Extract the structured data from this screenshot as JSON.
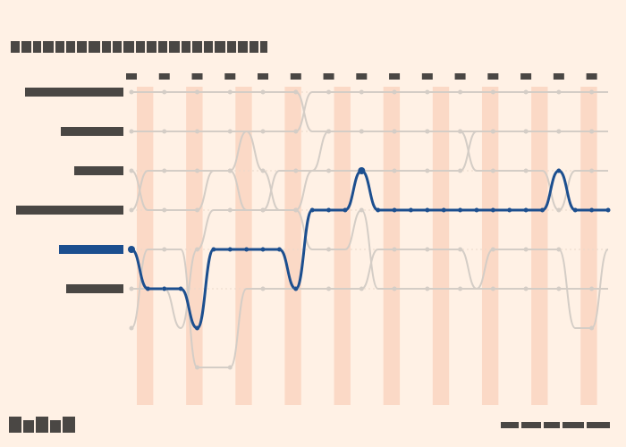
{
  "chart_data": {
    "type": "line",
    "title": "",
    "x": [
      1,
      2,
      3,
      4,
      5,
      6,
      7,
      8,
      9,
      10,
      11,
      12,
      13,
      14,
      15,
      16,
      17,
      18,
      19,
      20,
      21,
      22,
      23,
      24,
      25,
      26,
      27,
      28,
      29,
      30
    ],
    "y_positions_count": 7,
    "y_range": [
      1,
      7
    ],
    "highlight_bands": [
      [
        1,
        2
      ],
      [
        4,
        5
      ],
      [
        7,
        8
      ],
      [
        10,
        11
      ],
      [
        13,
        14
      ],
      [
        16,
        17
      ],
      [
        19,
        20
      ],
      [
        22,
        23
      ],
      [
        25,
        26
      ],
      [
        28,
        29
      ]
    ],
    "highlighted_series_index": 0,
    "series": [
      {
        "ranks": [
          5,
          6,
          6,
          6,
          7,
          5,
          5,
          5,
          5,
          5,
          6,
          4,
          4,
          4,
          3,
          4,
          4,
          4,
          4,
          4,
          4,
          4,
          4,
          4,
          4,
          4,
          3,
          4,
          4,
          4
        ]
      },
      {
        "ranks": [
          6,
          6,
          6,
          7,
          5,
          4,
          4,
          4,
          4,
          4,
          4,
          5,
          5,
          5,
          4,
          6,
          6,
          6,
          6,
          6,
          6,
          6,
          6,
          6,
          6,
          6,
          6,
          6,
          6,
          6
        ]
      },
      {
        "ranks": [
          4,
          3,
          3,
          3,
          3,
          3,
          3,
          4,
          4,
          3,
          3,
          3,
          3,
          3,
          3,
          3,
          3,
          3,
          3,
          3,
          3,
          2,
          2,
          2,
          2,
          2,
          2,
          2,
          2,
          2
        ]
      },
      {
        "ranks": [
          3,
          4,
          4,
          4,
          4,
          3,
          3,
          2,
          3,
          4,
          4,
          3,
          2,
          2,
          2,
          2,
          2,
          2,
          2,
          2,
          2,
          3,
          3,
          3,
          3,
          3,
          4,
          3,
          3,
          3
        ]
      },
      {
        "ranks": [
          2,
          2,
          2,
          2,
          2,
          2,
          2,
          2,
          2,
          2,
          2,
          1,
          1,
          1,
          1,
          1,
          1,
          1,
          1,
          1,
          1,
          1,
          1,
          1,
          1,
          1,
          1,
          1,
          1,
          1
        ]
      },
      {
        "ranks": [
          1,
          1,
          1,
          1,
          1,
          1,
          1,
          1,
          1,
          1,
          1,
          2,
          2,
          2,
          2,
          2,
          2,
          2,
          2,
          2,
          2,
          2,
          2,
          2,
          2,
          2,
          2,
          2,
          2,
          2
        ]
      },
      {
        "ranks": [
          7,
          5,
          5,
          5,
          8,
          8,
          8,
          6,
          6,
          6,
          6,
          6,
          6,
          6,
          6,
          5,
          5,
          5,
          5,
          5,
          5,
          6,
          5,
          5,
          5,
          5,
          5,
          7,
          7,
          5
        ]
      }
    ]
  },
  "colors": {
    "background": "#fff1e5",
    "band": "#fbd9c6",
    "highlight_line": "#1c4f8f",
    "other_lines": "#d4cdc6",
    "grid": "#e9d9cc"
  }
}
